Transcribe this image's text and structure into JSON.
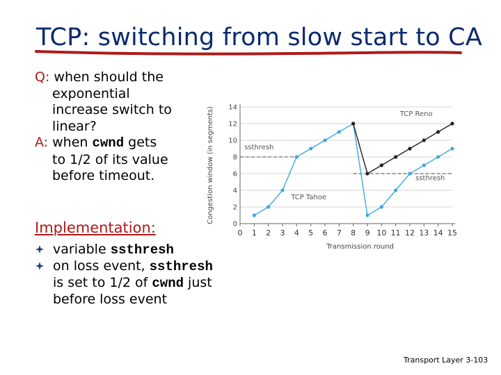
{
  "slide": {
    "title": "TCP: switching from slow start to CA",
    "question_label": "Q:",
    "question_lines": [
      "when should the",
      "exponential",
      "increase switch to",
      "linear?"
    ],
    "answer_label": "A:",
    "answer_pre": "when",
    "answer_code": "cwnd",
    "answer_post": "gets",
    "answer_lines": [
      "to 1/2 of its value",
      "before timeout."
    ],
    "impl_heading": "Implementation:",
    "bullet1_pre": "variable",
    "bullet1_code": "ssthresh",
    "bullet2_pre": "on loss event,",
    "bullet2_code": "ssthresh",
    "bullet2_line2_pre": "is set to 1/2 of",
    "bullet2_line2_code": "cwnd",
    "bullet2_line2_post": "just",
    "bullet2_line3": "before loss event",
    "footer": "Transport Layer 3-103",
    "colors": {
      "title": "#0a2a6e",
      "accent": "#b01818",
      "tahoe": "#3fa9e0",
      "reno": "#222222"
    }
  },
  "chart_data": {
    "type": "line",
    "xlabel": "Transmission round",
    "ylabel": "Congestion window (in segments)",
    "xlim": [
      0,
      15
    ],
    "ylim": [
      0,
      14
    ],
    "xticks": [
      0,
      1,
      2,
      3,
      4,
      5,
      6,
      7,
      8,
      9,
      10,
      11,
      12,
      13,
      14,
      15
    ],
    "yticks": [
      0,
      2,
      4,
      6,
      8,
      10,
      12,
      14
    ],
    "series": [
      {
        "name": "TCP Tahoe",
        "x": [
          1,
          2,
          3,
          4,
          5,
          6,
          7,
          8,
          9,
          10,
          11,
          12,
          13,
          14,
          15
        ],
        "y": [
          1,
          2,
          4,
          8,
          9,
          10,
          11,
          12,
          1,
          2,
          4,
          6,
          7,
          8,
          9
        ]
      },
      {
        "name": "TCP Reno",
        "x": [
          8,
          9,
          10,
          11,
          12,
          13,
          14,
          15
        ],
        "y": [
          12,
          6,
          7,
          8,
          9,
          10,
          11,
          12
        ]
      }
    ],
    "annotations": [
      {
        "text": "ssthresh",
        "x": 0.3,
        "y": 8.9
      },
      {
        "text": "ssthresh",
        "x": 12.4,
        "y": 5.2
      },
      {
        "text": "TCP Reno",
        "x": 11.3,
        "y": 12.9
      },
      {
        "text": "TCP Tahoe",
        "x": 3.6,
        "y": 2.9
      }
    ],
    "ssthresh_lines": [
      {
        "value": 8,
        "from": 0,
        "to": 4
      },
      {
        "value": 6,
        "from": 8,
        "to": 15
      }
    ]
  }
}
